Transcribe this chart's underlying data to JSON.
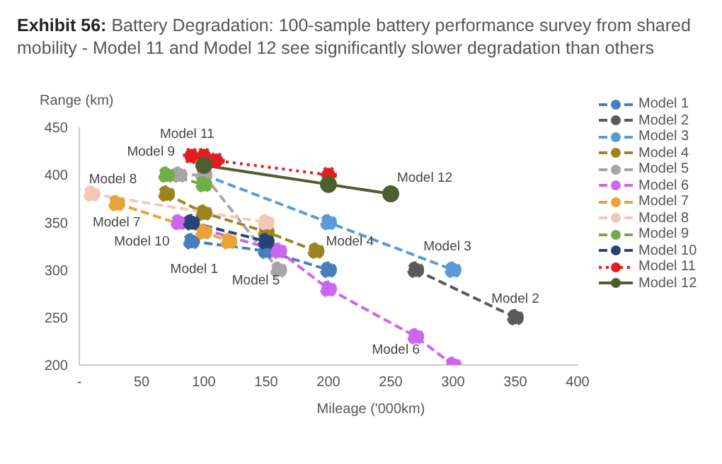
{
  "chart_data": {
    "type": "line",
    "title": "Exhibit 56:",
    "subtitle": "Battery Degradation: 100-sample battery performance survey from shared mobility - Model 11 and Model 12 see significantly slower degradation than others",
    "xlabel": "Mileage ('000km)",
    "ylabel": "Range (km)",
    "xlim": [
      0,
      400
    ],
    "xticks": [
      {
        "value": 0,
        "label": "-"
      },
      50,
      100,
      150,
      200,
      250,
      300,
      350,
      400
    ],
    "ylim": [
      200,
      450
    ],
    "yticks": [
      200,
      250,
      300,
      350,
      400,
      450
    ],
    "grid": false,
    "legend": "right",
    "marker": "circle",
    "line_style": "dashed",
    "series": [
      {
        "name": "Model 1",
        "color": "#4a7ebb",
        "x": [
          90,
          150,
          200
        ],
        "values": [
          330,
          320,
          300
        ]
      },
      {
        "name": "Model 2",
        "color": "#5a5a5a",
        "x": [
          270,
          350
        ],
        "values": [
          300,
          250
        ]
      },
      {
        "name": "Model 3",
        "color": "#5b9bd5",
        "x": [
          100,
          200,
          300
        ],
        "values": [
          400,
          350,
          300
        ]
      },
      {
        "name": "Model 4",
        "color": "#9c8420",
        "x": [
          70,
          100,
          150,
          190
        ],
        "values": [
          380,
          360,
          340,
          320
        ]
      },
      {
        "name": "Model 5",
        "color": "#a5a5a5",
        "x": [
          80,
          100,
          160
        ],
        "values": [
          400,
          400,
          300
        ]
      },
      {
        "name": "Model 6",
        "color": "#cc66ee",
        "x": [
          80,
          160,
          200,
          270,
          300
        ],
        "values": [
          350,
          320,
          280,
          230,
          200
        ]
      },
      {
        "name": "Model 7",
        "color": "#e8a33a",
        "x": [
          30,
          100,
          120
        ],
        "values": [
          370,
          340,
          330
        ]
      },
      {
        "name": "Model 8",
        "color": "#f2c9b8",
        "x": [
          10,
          150
        ],
        "values": [
          380,
          350
        ]
      },
      {
        "name": "Model 9",
        "color": "#70ad47",
        "x": [
          70,
          100
        ],
        "values": [
          400,
          390
        ]
      },
      {
        "name": "Model 10",
        "color": "#264478",
        "x": [
          90,
          150
        ],
        "values": [
          350,
          330
        ]
      },
      {
        "name": "Model 11",
        "color": "#e02020",
        "line_style": "dotted",
        "x": [
          90,
          100,
          110,
          200
        ],
        "values": [
          420,
          420,
          415,
          400
        ]
      },
      {
        "name": "Model 12",
        "color": "#4e5e2e",
        "line_style": "solid",
        "x": [
          100,
          200,
          250
        ],
        "values": [
          410,
          390,
          380
        ]
      }
    ],
    "annotations": [
      {
        "text": "Model 11",
        "x": 90,
        "y": 420
      },
      {
        "text": "Model 9",
        "x": 70,
        "y": 400
      },
      {
        "text": "Model 8",
        "x": 10,
        "y": 380
      },
      {
        "text": "Model 7",
        "x": 30,
        "y": 370
      },
      {
        "text": "Model 10",
        "x": 90,
        "y": 350
      },
      {
        "text": "Model 1",
        "x": 90,
        "y": 330
      },
      {
        "text": "Model 5",
        "x": 160,
        "y": 300
      },
      {
        "text": "Model 4",
        "x": 190,
        "y": 320
      },
      {
        "text": "Model 3",
        "x": 300,
        "y": 300
      },
      {
        "text": "Model 12",
        "x": 250,
        "y": 380
      },
      {
        "text": "Model 2",
        "x": 350,
        "y": 250
      },
      {
        "text": "Model 6",
        "x": 270,
        "y": 230
      }
    ]
  }
}
